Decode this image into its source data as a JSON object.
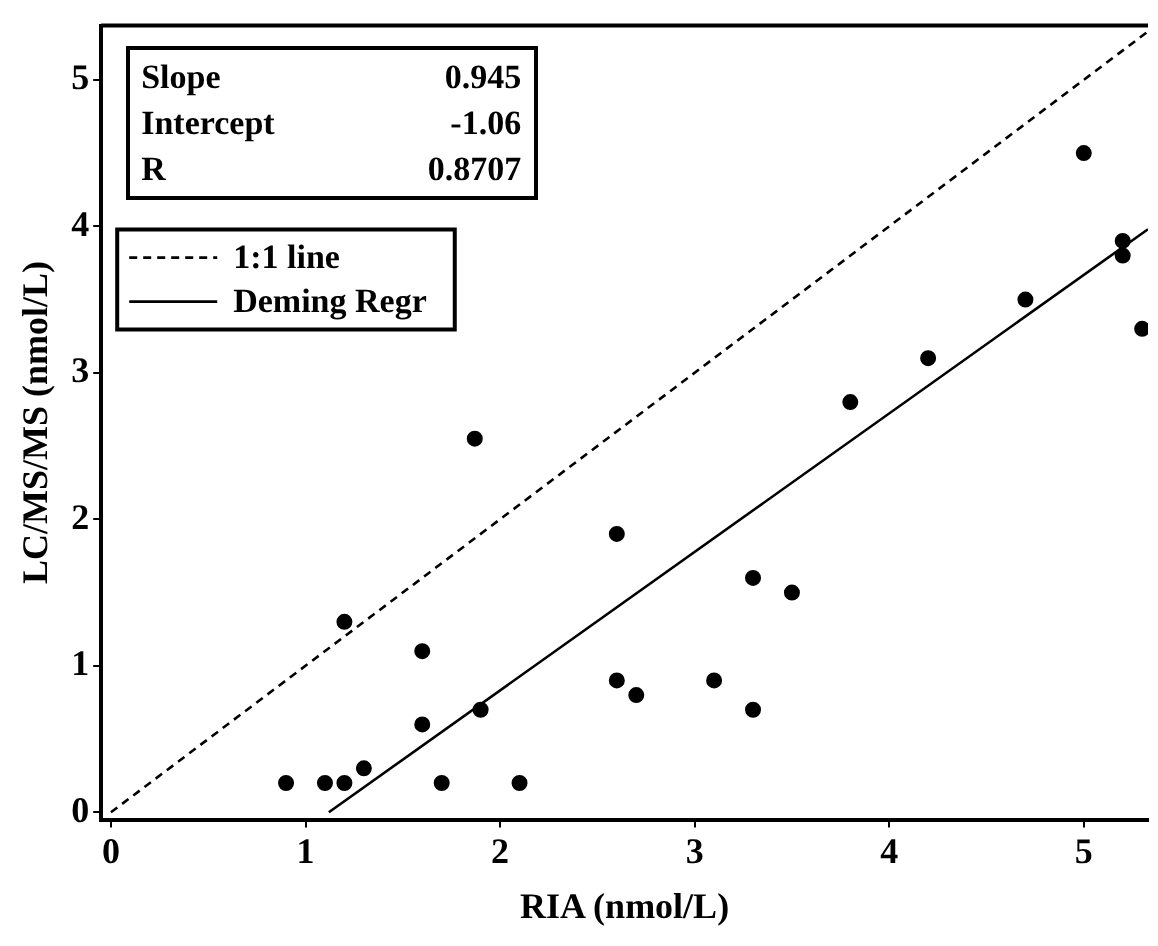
{
  "chart_data": {
    "type": "scatter",
    "xlabel": "RIA (nmol/L)",
    "ylabel": "LC/MS/MS (nmol/L)",
    "xlim": [
      -0.05,
      5.33
    ],
    "ylim": [
      -0.05,
      5.37
    ],
    "xticks": [
      0,
      1,
      2,
      3,
      4,
      5
    ],
    "yticks": [
      0,
      1,
      2,
      3,
      4,
      5
    ],
    "grid": false,
    "legend": "top left",
    "marker": "circle",
    "annotations": [
      "Slope 0.945",
      "Intercept -1.06",
      "R 0.8707"
    ],
    "series": [
      {
        "type": "scatter",
        "color": "#000000",
        "x": [
          0.9,
          1.1,
          1.2,
          1.2,
          1.3,
          1.6,
          1.6,
          1.7,
          1.87,
          1.9,
          2.1,
          2.6,
          2.6,
          2.7,
          3.1,
          3.3,
          3.3,
          3.5,
          3.8,
          4.2,
          4.7,
          5.0,
          5.2,
          5.2,
          5.3
        ],
        "values": [
          0.2,
          0.2,
          0.2,
          1.3,
          0.3,
          1.1,
          0.6,
          0.2,
          2.55,
          0.7,
          0.2,
          1.9,
          0.9,
          0.8,
          0.9,
          0.7,
          1.6,
          1.5,
          2.8,
          3.1,
          3.5,
          4.5,
          3.9,
          3.8,
          3.3
        ]
      },
      {
        "type": "line",
        "name": "1:1 line",
        "color": "#000000",
        "line_style": "dashed",
        "marker": "none",
        "x": [
          0,
          5.33
        ],
        "values": [
          0,
          5.33
        ]
      },
      {
        "type": "line",
        "name": "Deming Regr",
        "color": "#000000",
        "line_style": "solid",
        "marker": "none",
        "x": [
          1.12,
          5.33
        ],
        "values": [
          0,
          3.98
        ]
      }
    ]
  }
}
